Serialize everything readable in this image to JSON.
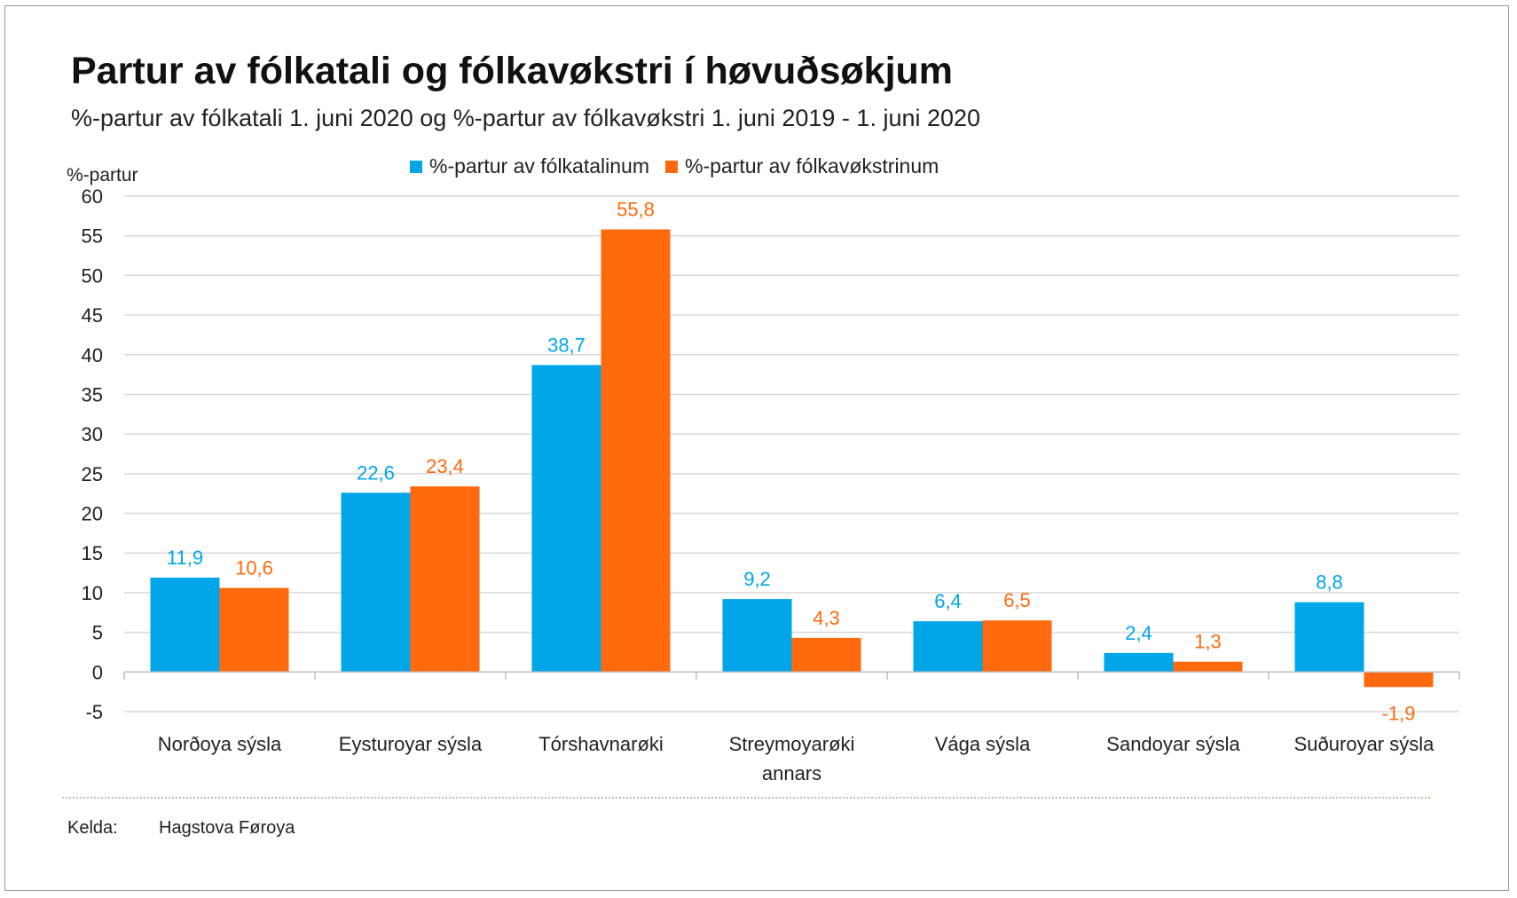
{
  "title": "Partur av fólkatali og fólkavøkstri í høvuðsøkjum",
  "subtitle": "%-partur av fólkatali 1. juni 2020 og %-partur av fólkavøkstri 1. juni 2019 - 1. juni 2020",
  "source": {
    "label": "Kelda:",
    "value": "Hagstova Føroya"
  },
  "colors": {
    "series1": "#00A6E8",
    "series2": "#FF6A0E",
    "grid": "#D9D9D9",
    "axis": "#BFBFBF"
  },
  "chart_data": {
    "type": "bar",
    "ylabel": "%-partur",
    "ylim": [
      -5,
      60
    ],
    "yticks": [
      60,
      55,
      50,
      45,
      40,
      35,
      30,
      25,
      20,
      15,
      10,
      5,
      0,
      -5
    ],
    "grid": true,
    "legend": "top-center",
    "categories": [
      "Norðoya sýsla",
      "Eysturoyar sýsla",
      "Tórshavnarøki",
      "Streymoyarøki annars",
      "Vága sýsla",
      "Sandoyar sýsla",
      "Suðuroyar sýsla"
    ],
    "series": [
      {
        "name": "%-partur av fólkatalinum",
        "values": [
          11.9,
          22.6,
          38.7,
          9.2,
          6.4,
          2.4,
          8.8
        ],
        "labels": [
          "11,9",
          "22,6",
          "38,7",
          "9,2",
          "6,4",
          "2,4",
          "8,8"
        ]
      },
      {
        "name": "%-partur av fólkavøkstrinum",
        "values": [
          10.6,
          23.4,
          55.8,
          4.3,
          6.5,
          1.3,
          -1.9
        ],
        "labels": [
          "10,6",
          "23,4",
          "55,8",
          "4,3",
          "6,5",
          "1,3",
          "-1,9"
        ]
      }
    ]
  }
}
